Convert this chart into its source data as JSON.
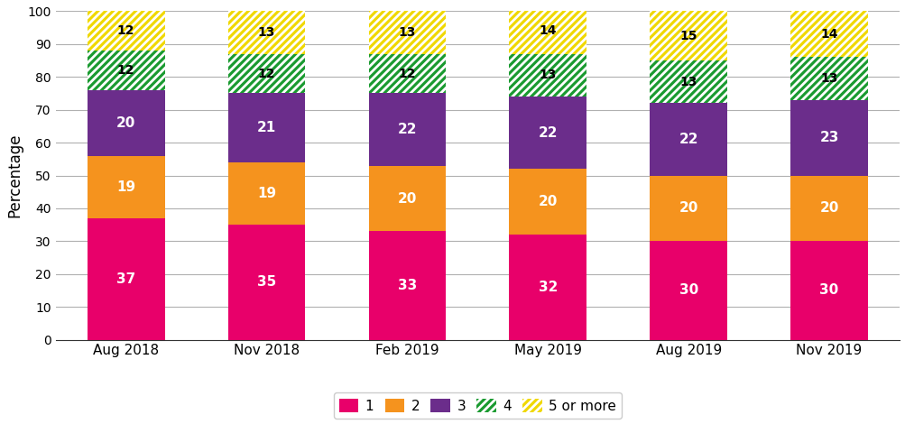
{
  "categories": [
    "Aug 2018",
    "Nov 2018",
    "Feb 2019",
    "May 2019",
    "Aug 2019",
    "Nov 2019"
  ],
  "series": {
    "1": [
      37,
      35,
      33,
      32,
      30,
      30
    ],
    "2": [
      19,
      19,
      20,
      20,
      20,
      20
    ],
    "3": [
      20,
      21,
      22,
      22,
      22,
      23
    ],
    "4": [
      12,
      12,
      12,
      13,
      13,
      13
    ],
    "5 or more": [
      12,
      13,
      13,
      14,
      15,
      14
    ]
  },
  "colors": {
    "1": "#E8006A",
    "2": "#F5931E",
    "3": "#6B2D8B",
    "4": "#1A9A30",
    "5 or more": "#F0D800"
  },
  "hatch": {
    "1": "",
    "2": "",
    "3": "",
    "4": "////",
    "5 or more": "////"
  },
  "text_color": {
    "1": "#ffffff",
    "2": "#ffffff",
    "3": "#ffffff",
    "4": "#000000",
    "5 or more": "#000000"
  },
  "text_fontsize": {
    "1": 11,
    "2": 11,
    "3": 11,
    "4": 10,
    "5 or more": 10
  },
  "ylabel": "Percentage",
  "ylim": [
    0,
    100
  ],
  "yticks": [
    0,
    10,
    20,
    30,
    40,
    50,
    60,
    70,
    80,
    90,
    100
  ],
  "legend_order": [
    "1",
    "2",
    "3",
    "4",
    "5 or more"
  ],
  "bar_width": 0.55,
  "grid_color": "#b0b0b0",
  "background_color": "#ffffff"
}
